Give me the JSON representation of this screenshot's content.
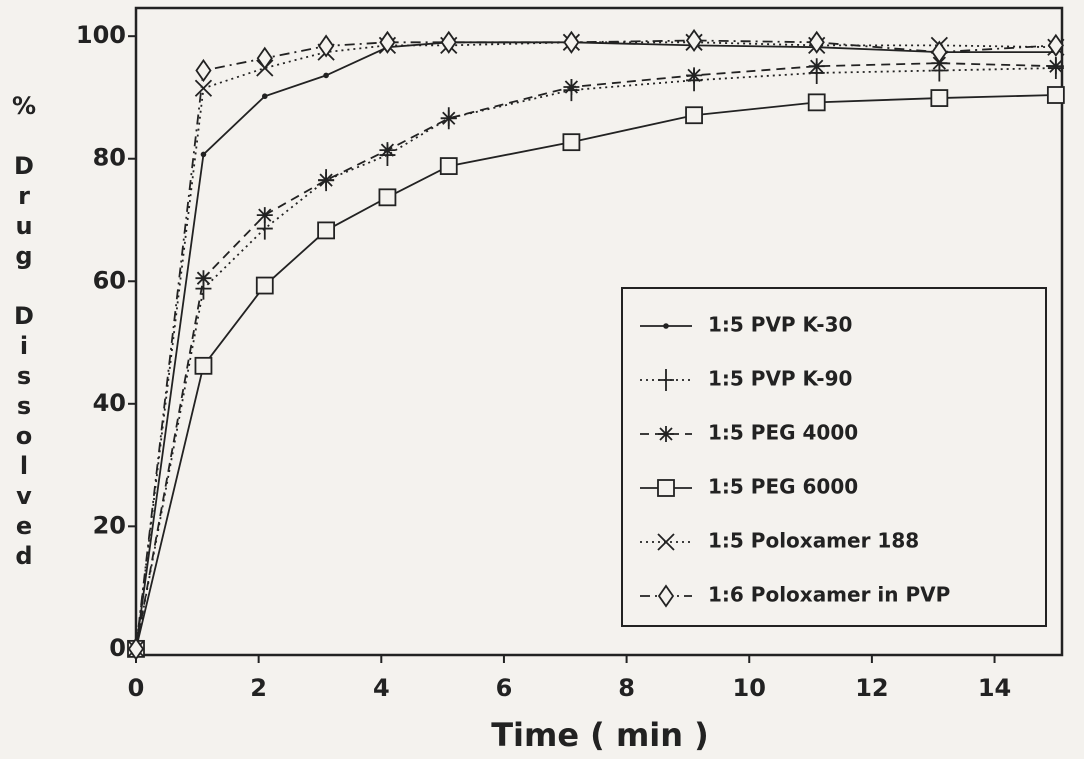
{
  "chart_data": {
    "type": "line",
    "x_label": "Time ( min )",
    "y_label": "% Drug Dissolved",
    "x": [
      0,
      1.1,
      2.1,
      3.1,
      4.1,
      5.1,
      7.1,
      9.1,
      11.1,
      13.1,
      15
    ],
    "xlim": [
      0,
      15.1
    ],
    "xticks": [
      0,
      2,
      4,
      6,
      8,
      10,
      12,
      14
    ],
    "ylim": [
      -1,
      104.6
    ],
    "yticks": [
      0,
      20,
      40,
      60,
      80,
      100
    ],
    "legend": "lower right",
    "series": [
      {
        "name": "1:5 PVP K-30",
        "color": "#222222",
        "dash": "solid",
        "marker": "dot",
        "values": [
          0,
          80.7,
          90.2,
          93.6,
          98.2,
          99,
          99,
          98.5,
          98.2,
          97.4,
          97.4
        ]
      },
      {
        "name": "1:5 PVP K-90",
        "color": "#222222",
        "dash": "dotted",
        "marker": "plus",
        "values": [
          0,
          58.8,
          68.6,
          76.5,
          80.6,
          86.6,
          91.2,
          92.8,
          94,
          94.4,
          94.8
        ]
      },
      {
        "name": "1:5 PEG 4000",
        "color": "#222222",
        "dash": "dashed",
        "marker": "asterisk",
        "values": [
          0,
          60.5,
          70.8,
          76.5,
          81.4,
          86.6,
          91.7,
          93.6,
          95.1,
          95.6,
          95.1
        ]
      },
      {
        "name": "1:5 PEG 6000",
        "color": "#222222",
        "dash": "solid",
        "marker": "square",
        "values": [
          0,
          46.2,
          59.3,
          68.3,
          73.7,
          78.8,
          82.7,
          87.1,
          89.2,
          89.9,
          90.4
        ]
      },
      {
        "name": "1:5 Poloxamer 188",
        "color": "#222222",
        "dash": "dotted",
        "marker": "x",
        "values": [
          0,
          91.5,
          94.8,
          97.4,
          98.5,
          98.5,
          99,
          99,
          98.5,
          98.5,
          98.2
        ]
      },
      {
        "name": "1:6 Poloxamer in PVP",
        "color": "#222222",
        "dash": "dashdot",
        "marker": "diamond",
        "values": [
          0,
          94.4,
          96.4,
          98.4,
          99,
          99,
          99,
          99.3,
          99,
          97.4,
          98.5
        ]
      }
    ]
  }
}
